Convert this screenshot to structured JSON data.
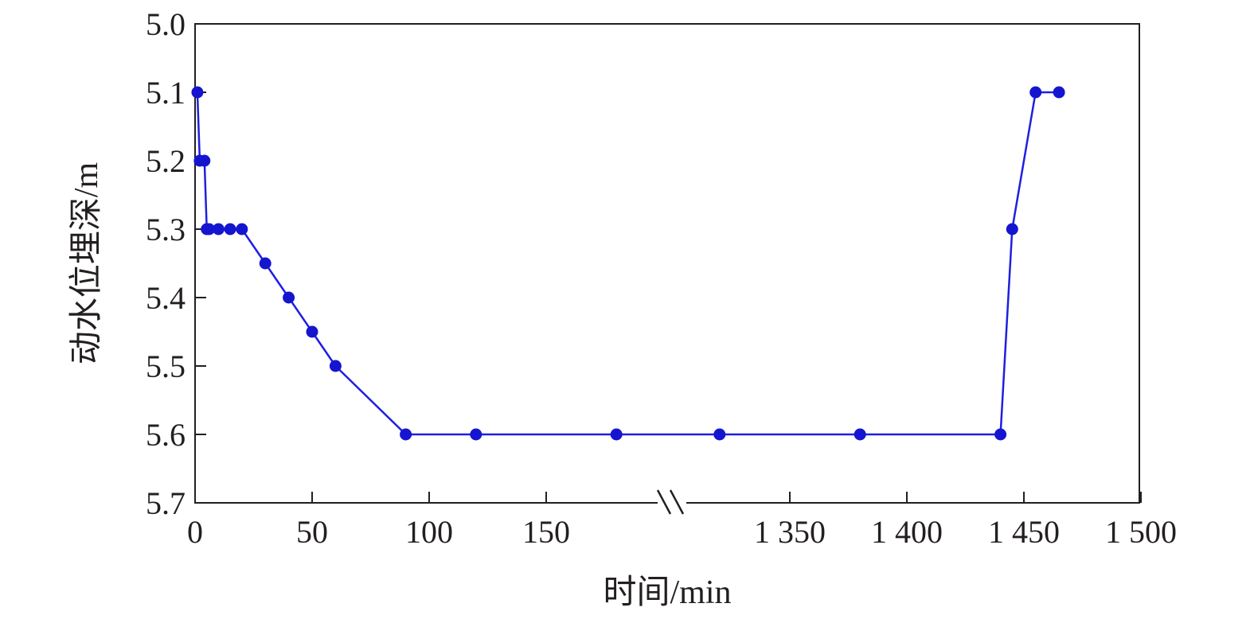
{
  "chart_data": {
    "type": "line",
    "title": "",
    "xlabel": "时间/min",
    "ylabel": "动水位埋深/m",
    "y_inverted": true,
    "ylim": [
      5.0,
      5.7
    ],
    "y_ticks": [
      "5.0",
      "5.1",
      "5.2",
      "5.3",
      "5.4",
      "5.5",
      "5.6",
      "5.7"
    ],
    "x_axis_break": true,
    "x_segments": [
      {
        "range": [
          0,
          200
        ],
        "ticks": [
          0,
          50,
          100,
          150
        ],
        "tick_labels": [
          "0",
          "50",
          "100",
          "150"
        ]
      },
      {
        "range": [
          1300,
          1500
        ],
        "ticks": [
          1350,
          1400,
          1450,
          1500
        ],
        "tick_labels": [
          "1 350",
          "1 400",
          "1 450",
          "1 500"
        ]
      }
    ],
    "grid": false,
    "series": [
      {
        "color": "#1f1fe0",
        "marker_color": "#1515d0",
        "points": [
          {
            "x": 1,
            "y": 5.1
          },
          {
            "x": 2,
            "y": 5.2
          },
          {
            "x": 4,
            "y": 5.2
          },
          {
            "x": 5,
            "y": 5.3
          },
          {
            "x": 6,
            "y": 5.3
          },
          {
            "x": 10,
            "y": 5.3
          },
          {
            "x": 15,
            "y": 5.3
          },
          {
            "x": 20,
            "y": 5.3
          },
          {
            "x": 30,
            "y": 5.35
          },
          {
            "x": 40,
            "y": 5.4
          },
          {
            "x": 50,
            "y": 5.45
          },
          {
            "x": 60,
            "y": 5.5
          },
          {
            "x": 90,
            "y": 5.6
          },
          {
            "x": 120,
            "y": 5.6
          },
          {
            "x": 180,
            "y": 5.6
          },
          {
            "x": 1320,
            "y": 5.6
          },
          {
            "x": 1380,
            "y": 5.6
          },
          {
            "x": 1440,
            "y": 5.6
          },
          {
            "x": 1445,
            "y": 5.3
          },
          {
            "x": 1455,
            "y": 5.1
          },
          {
            "x": 1465,
            "y": 5.1
          }
        ]
      }
    ]
  }
}
